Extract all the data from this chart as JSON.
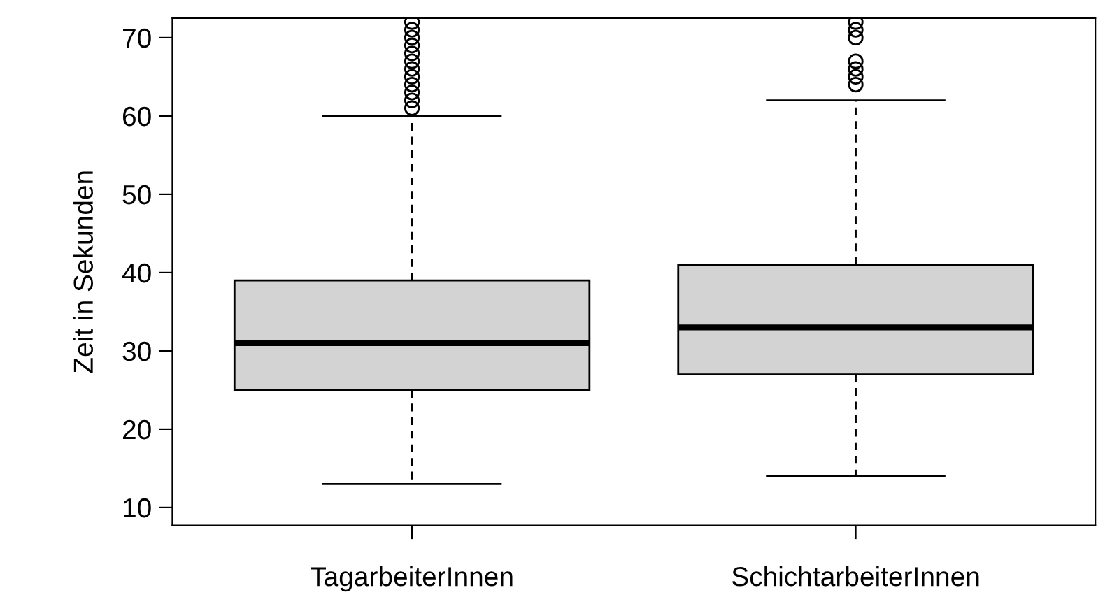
{
  "chart_data": {
    "type": "box",
    "ylabel": "Zeit in Sekunden",
    "categories": [
      "TagarbeiterInnen",
      "SchichtarbeiterInnen"
    ],
    "boxes": [
      {
        "low": 13,
        "q1": 25,
        "median": 31,
        "q3": 39,
        "high": 60,
        "outliers": [
          61,
          62,
          63,
          64,
          65,
          66,
          67,
          68,
          69,
          70,
          71,
          72
        ]
      },
      {
        "low": 14,
        "q1": 27,
        "median": 33,
        "q3": 41,
        "high": 62,
        "outliers": [
          64,
          65,
          66,
          67,
          70,
          71,
          72
        ]
      }
    ],
    "color": "#d3d3d3",
    "ylim": [
      7.7,
      72.5
    ],
    "yticks": [
      10,
      20,
      30,
      40,
      50,
      60,
      70
    ],
    "grid": false,
    "marker": "circle"
  }
}
